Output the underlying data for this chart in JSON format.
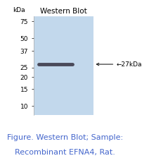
{
  "title": "Western Blot",
  "figure_text_line1": "Figure. Western Blot; Sample:",
  "figure_text_line2": "Recombinant EFNA4, Rat.",
  "blot_color": "#c2d8ec",
  "band_color": "#4a4a5a",
  "band_label": "←27kDa",
  "kda_label": "kDa",
  "y_ticks": [
    10,
    15,
    20,
    25,
    37,
    50,
    75
  ],
  "band_kda": 27,
  "y_min": 8,
  "y_max": 85,
  "title_fontsize": 7.5,
  "tick_fontsize": 6.5,
  "caption_fontsize": 8,
  "caption_color": "#4466cc",
  "band_arrow_color": "#222222",
  "spine_color": "#aaaaaa"
}
